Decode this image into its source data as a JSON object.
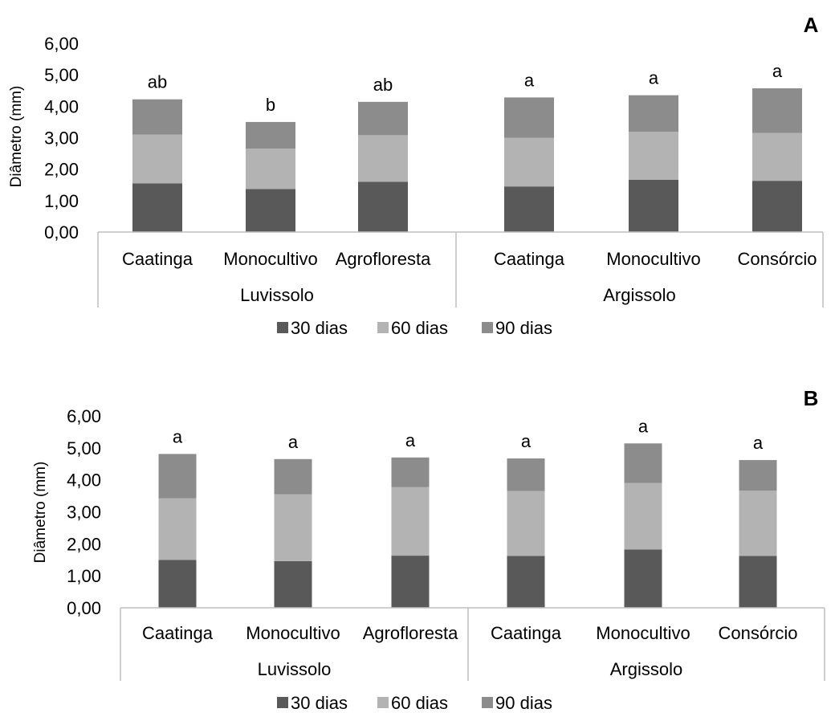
{
  "colors": {
    "30 dias": "#595959",
    "60 dias": "#b3b3b3",
    "90 dias": "#8c8c8c",
    "axis": "#bfbfbf",
    "text": "#000000"
  },
  "chart_data": [
    {
      "type": "bar",
      "stacked": true,
      "panel_label": "A",
      "ylabel": "Diâmetro (mm)",
      "ylim": [
        0,
        6
      ],
      "yticks": [
        "0,00",
        "1,00",
        "2,00",
        "3,00",
        "4,00",
        "5,00",
        "6,00"
      ],
      "groups": [
        {
          "name": "Luvissolo",
          "categories": [
            "Caatinga",
            "Monocultivo",
            "Agrofloresta"
          ]
        },
        {
          "name": "Argissolo",
          "categories": [
            "Caatinga",
            "Monocultivo",
            "Consórcio"
          ]
        }
      ],
      "categories": [
        "Caatinga",
        "Monocultivo",
        "Agrofloresta",
        "Caatinga",
        "Monocultivo",
        "Consórcio"
      ],
      "series": [
        {
          "name": "30 dias",
          "values": [
            1.55,
            1.37,
            1.6,
            1.45,
            1.66,
            1.63
          ]
        },
        {
          "name": "60 dias",
          "values": [
            1.55,
            1.28,
            1.48,
            1.55,
            1.53,
            1.52
          ]
        },
        {
          "name": "90 dias",
          "values": [
            1.12,
            0.85,
            1.06,
            1.28,
            1.16,
            1.42
          ]
        }
      ],
      "annotations": [
        "ab",
        "b",
        "ab",
        "a",
        "a",
        "a"
      ],
      "legend": [
        "30 dias",
        "60 dias",
        "90 dias"
      ],
      "legend_position": "bottom",
      "grid": false
    },
    {
      "type": "bar",
      "stacked": true,
      "panel_label": "B",
      "ylabel": "Diâmetro (mm)",
      "ylim": [
        0,
        6
      ],
      "yticks": [
        "0,00",
        "1,00",
        "2,00",
        "3,00",
        "4,00",
        "5,00",
        "6,00"
      ],
      "groups": [
        {
          "name": "Luvissolo",
          "categories": [
            "Caatinga",
            "Monocultivo",
            "Agrofloresta"
          ]
        },
        {
          "name": "Argissolo",
          "categories": [
            "Caatinga",
            "Monocultivo",
            "Consórcio"
          ]
        }
      ],
      "categories": [
        "Caatinga",
        "Monocultivo",
        "Agrofloresta",
        "Caatinga",
        "Monocultivo",
        "Consórcio"
      ],
      "series": [
        {
          "name": "30 dias",
          "values": [
            1.5,
            1.46,
            1.63,
            1.62,
            1.82,
            1.62
          ]
        },
        {
          "name": "60 dias",
          "values": [
            1.92,
            2.09,
            2.14,
            2.03,
            2.08,
            2.04
          ]
        },
        {
          "name": "90 dias",
          "values": [
            1.39,
            1.1,
            0.93,
            1.02,
            1.24,
            0.96
          ]
        }
      ],
      "annotations": [
        "a",
        "a",
        "a",
        "a",
        "a",
        "a"
      ],
      "legend": [
        "30 dias",
        "60 dias",
        "90 dias"
      ],
      "legend_position": "bottom",
      "grid": false
    }
  ]
}
